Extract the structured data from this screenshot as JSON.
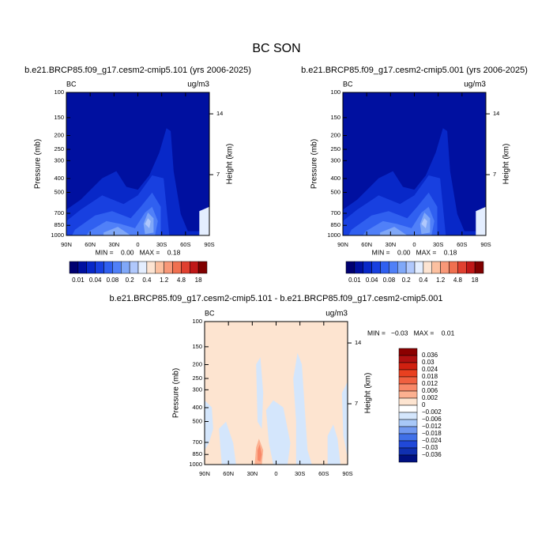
{
  "title": "BC SON",
  "chart_data": [
    {
      "type": "contour",
      "title": "b.e21.BRCP85.f09_g17.cesm2-cmip5.101 (yrs 2006-2025)",
      "variable": "BC",
      "units": "ug/m3",
      "y_label": "Pressure (mb)",
      "y2_label": "Height (km)",
      "log_y": true,
      "ylim": [
        1000,
        100
      ],
      "yticks": [
        100,
        150,
        200,
        250,
        300,
        400,
        500,
        700,
        850,
        1000
      ],
      "y2ticks": [
        14,
        7
      ],
      "xlim": [
        90,
        -90
      ],
      "xticks": [
        {
          "value": 90,
          "label": "90N"
        },
        {
          "value": 60,
          "label": "60N"
        },
        {
          "value": 30,
          "label": "30N"
        },
        0,
        {
          "value": -30,
          "label": "30S"
        },
        {
          "value": -60,
          "label": "60S"
        },
        {
          "value": -90,
          "label": "90S"
        }
      ],
      "stats": "MIN =    0.00   MAX =    0.18",
      "colorbar_orientation": "horizontal",
      "levels": [
        0.01,
        null,
        0.04,
        null,
        0.08,
        null,
        0.2,
        null,
        0.4,
        null,
        1.2,
        null,
        4.8,
        null,
        18
      ],
      "colors": [
        "#000070",
        "#0010a0",
        "#0828c8",
        "#1840e0",
        "#3060f0",
        "#5080f8",
        "#80a8f8",
        "#b0c8fc",
        "#e4eeff",
        "#fde4d2",
        "#fcc0a0",
        "#f89878",
        "#f07050",
        "#e04030",
        "#c01818",
        "#800000"
      ]
    },
    {
      "type": "contour",
      "title": "b.e21.BRCP85.f09_g17.cesm2-cmip5.001 (yrs 2006-2025)",
      "variable": "BC",
      "units": "ug/m3",
      "y_label": "Pressure (mb)",
      "y2_label": "Height (km)",
      "log_y": true,
      "ylim": [
        1000,
        100
      ],
      "yticks": [
        100,
        150,
        200,
        250,
        300,
        400,
        500,
        700,
        850,
        1000
      ],
      "y2ticks": [
        14,
        7
      ],
      "xlim": [
        90,
        -90
      ],
      "xticks": [
        {
          "value": 90,
          "label": "90N"
        },
        {
          "value": 60,
          "label": "60N"
        },
        {
          "value": 30,
          "label": "30N"
        },
        0,
        {
          "value": -30,
          "label": "30S"
        },
        {
          "value": -60,
          "label": "60S"
        },
        {
          "value": -90,
          "label": "90S"
        }
      ],
      "stats": "MIN =    0.00   MAX =    0.18",
      "colorbar_orientation": "horizontal",
      "levels": [
        0.01,
        null,
        0.04,
        null,
        0.08,
        null,
        0.2,
        null,
        0.4,
        null,
        1.2,
        null,
        4.8,
        null,
        18
      ],
      "colors": [
        "#000070",
        "#0010a0",
        "#0828c8",
        "#1840e0",
        "#3060f0",
        "#5080f8",
        "#80a8f8",
        "#b0c8fc",
        "#e4eeff",
        "#fde4d2",
        "#fcc0a0",
        "#f89878",
        "#f07050",
        "#e04030",
        "#c01818",
        "#800000"
      ]
    },
    {
      "type": "contour",
      "title": "b.e21.BRCP85.f09_g17.cesm2-cmip5.101 - b.e21.BRCP85.f09_g17.cesm2-cmip5.001",
      "variable": "BC",
      "units": "ug/m3",
      "y_label": "Pressure (mb)",
      "y2_label": "Height (km)",
      "log_y": true,
      "ylim": [
        1000,
        100
      ],
      "yticks": [
        100,
        150,
        200,
        250,
        300,
        400,
        500,
        700,
        850,
        1000
      ],
      "y2ticks": [
        14,
        7
      ],
      "xlim": [
        90,
        -90
      ],
      "xticks": [
        {
          "value": 90,
          "label": "90N"
        },
        {
          "value": 60,
          "label": "60N"
        },
        {
          "value": 30,
          "label": "30N"
        },
        0,
        {
          "value": -30,
          "label": "30S"
        },
        {
          "value": -60,
          "label": "60S"
        },
        {
          "value": -90,
          "label": "90S"
        }
      ],
      "stats": "MIN =   −0.03   MAX =    0.01",
      "colorbar_orientation": "vertical",
      "levels": [
        0.036,
        0.03,
        0.024,
        0.018,
        0.012,
        0.006,
        0.002,
        0,
        {
          "value": -0.002,
          "label": "−0.002"
        },
        {
          "value": -0.006,
          "label": "−0.006"
        },
        {
          "value": -0.012,
          "label": "−0.012"
        },
        {
          "value": -0.018,
          "label": "−0.018"
        },
        {
          "value": -0.024,
          "label": "−0.024"
        },
        {
          "value": -0.03,
          "label": "−0.03"
        },
        {
          "value": -0.036,
          "label": "−0.036"
        }
      ],
      "colors": [
        "#8b0000",
        "#b01010",
        "#d02010",
        "#e84020",
        "#f06040",
        "#f88868",
        "#fcb090",
        "#fde4d0",
        "#ffffff",
        "#d4e6fc",
        "#a8c8f8",
        "#7098f0",
        "#4070e8",
        "#2048d8",
        "#1030b0",
        "#001080"
      ]
    }
  ]
}
